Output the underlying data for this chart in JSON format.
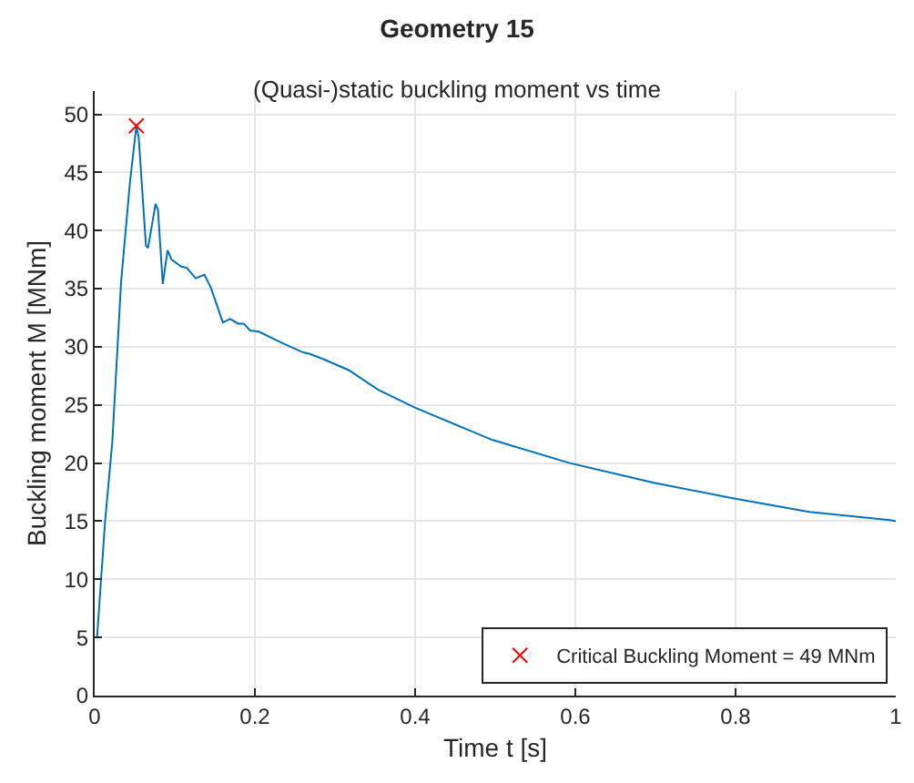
{
  "chart_data": {
    "type": "line",
    "title": "Geometry 15",
    "subtitle": "(Quasi-)static buckling moment vs time",
    "xlabel": "Time t [s]",
    "ylabel": "Buckling moment M [MNm]",
    "xlim": [
      0,
      1
    ],
    "xticks": [
      0,
      0.2,
      0.4,
      0.6,
      0.8,
      1
    ],
    "ylim": [
      0,
      52
    ],
    "yticks": [
      0,
      5,
      10,
      15,
      20,
      25,
      30,
      35,
      40,
      45,
      50
    ],
    "grid": true,
    "legend": "bottom right",
    "series": [
      {
        "color": "#0072bd",
        "marker": "none",
        "x": [
          0.003,
          0.013,
          0.022,
          0.033,
          0.044,
          0.052,
          0.055,
          0.064,
          0.0666,
          0.076,
          0.079,
          0.085,
          0.091,
          0.096,
          0.108,
          0.115,
          0.126,
          0.137,
          0.145,
          0.16,
          0.169,
          0.179,
          0.186,
          0.194,
          0.205,
          0.235,
          0.261,
          0.268,
          0.287,
          0.317,
          0.354,
          0.399,
          0.496,
          0.593,
          0.698,
          0.795,
          0.892,
          0.993,
          1.0
        ],
        "values": [
          5,
          15,
          21.8,
          35.6,
          44.1,
          49.0,
          48,
          38.7,
          38.5,
          42.3,
          41.8,
          35.4,
          38.3,
          37.5,
          36.9,
          36.8,
          35.9,
          36.2,
          35.1,
          32.1,
          32.4,
          32.0,
          32.0,
          31.4,
          31.3,
          30.3,
          29.5,
          29.4,
          28.9,
          28.0,
          26.3,
          24.8,
          22.0,
          20.0,
          18.3,
          17.0,
          15.8,
          15.1,
          15.0
        ]
      },
      {
        "type": "scatter",
        "name": "Critical Buckling Moment = 49 MNm",
        "color": "#ff0000",
        "marker": "cross",
        "x": [
          0.052
        ],
        "values": [
          49.0
        ]
      }
    ]
  }
}
